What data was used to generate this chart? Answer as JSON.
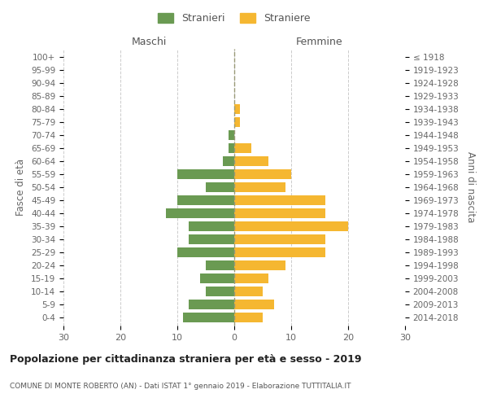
{
  "age_groups": [
    "0-4",
    "5-9",
    "10-14",
    "15-19",
    "20-24",
    "25-29",
    "30-34",
    "35-39",
    "40-44",
    "45-49",
    "50-54",
    "55-59",
    "60-64",
    "65-69",
    "70-74",
    "75-79",
    "80-84",
    "85-89",
    "90-94",
    "95-99",
    "100+"
  ],
  "birth_years": [
    "2014-2018",
    "2009-2013",
    "2004-2008",
    "1999-2003",
    "1994-1998",
    "1989-1993",
    "1984-1988",
    "1979-1983",
    "1974-1978",
    "1969-1973",
    "1964-1968",
    "1959-1963",
    "1954-1958",
    "1949-1953",
    "1944-1948",
    "1939-1943",
    "1934-1938",
    "1929-1933",
    "1924-1928",
    "1919-1923",
    "≤ 1918"
  ],
  "maschi": [
    9,
    8,
    5,
    6,
    5,
    10,
    8,
    8,
    12,
    10,
    5,
    10,
    2,
    1,
    1,
    0,
    0,
    0,
    0,
    0,
    0
  ],
  "femmine": [
    5,
    7,
    5,
    6,
    9,
    16,
    16,
    20,
    16,
    16,
    9,
    10,
    6,
    3,
    0,
    1,
    1,
    0,
    0,
    0,
    0
  ],
  "maschi_color": "#6a9a52",
  "femmine_color": "#f5b731",
  "title": "Popolazione per cittadinanza straniera per età e sesso - 2019",
  "subtitle": "COMUNE DI MONTE ROBERTO (AN) - Dati ISTAT 1° gennaio 2019 - Elaborazione TUTTITALIA.IT",
  "legend_maschi": "Stranieri",
  "legend_femmine": "Straniere",
  "xlabel_left": "Maschi",
  "xlabel_right": "Femmine",
  "ylabel_left": "Fasce di età",
  "ylabel_right": "Anni di nascita",
  "xlim": 30,
  "background_color": "#ffffff",
  "grid_color": "#cccccc"
}
